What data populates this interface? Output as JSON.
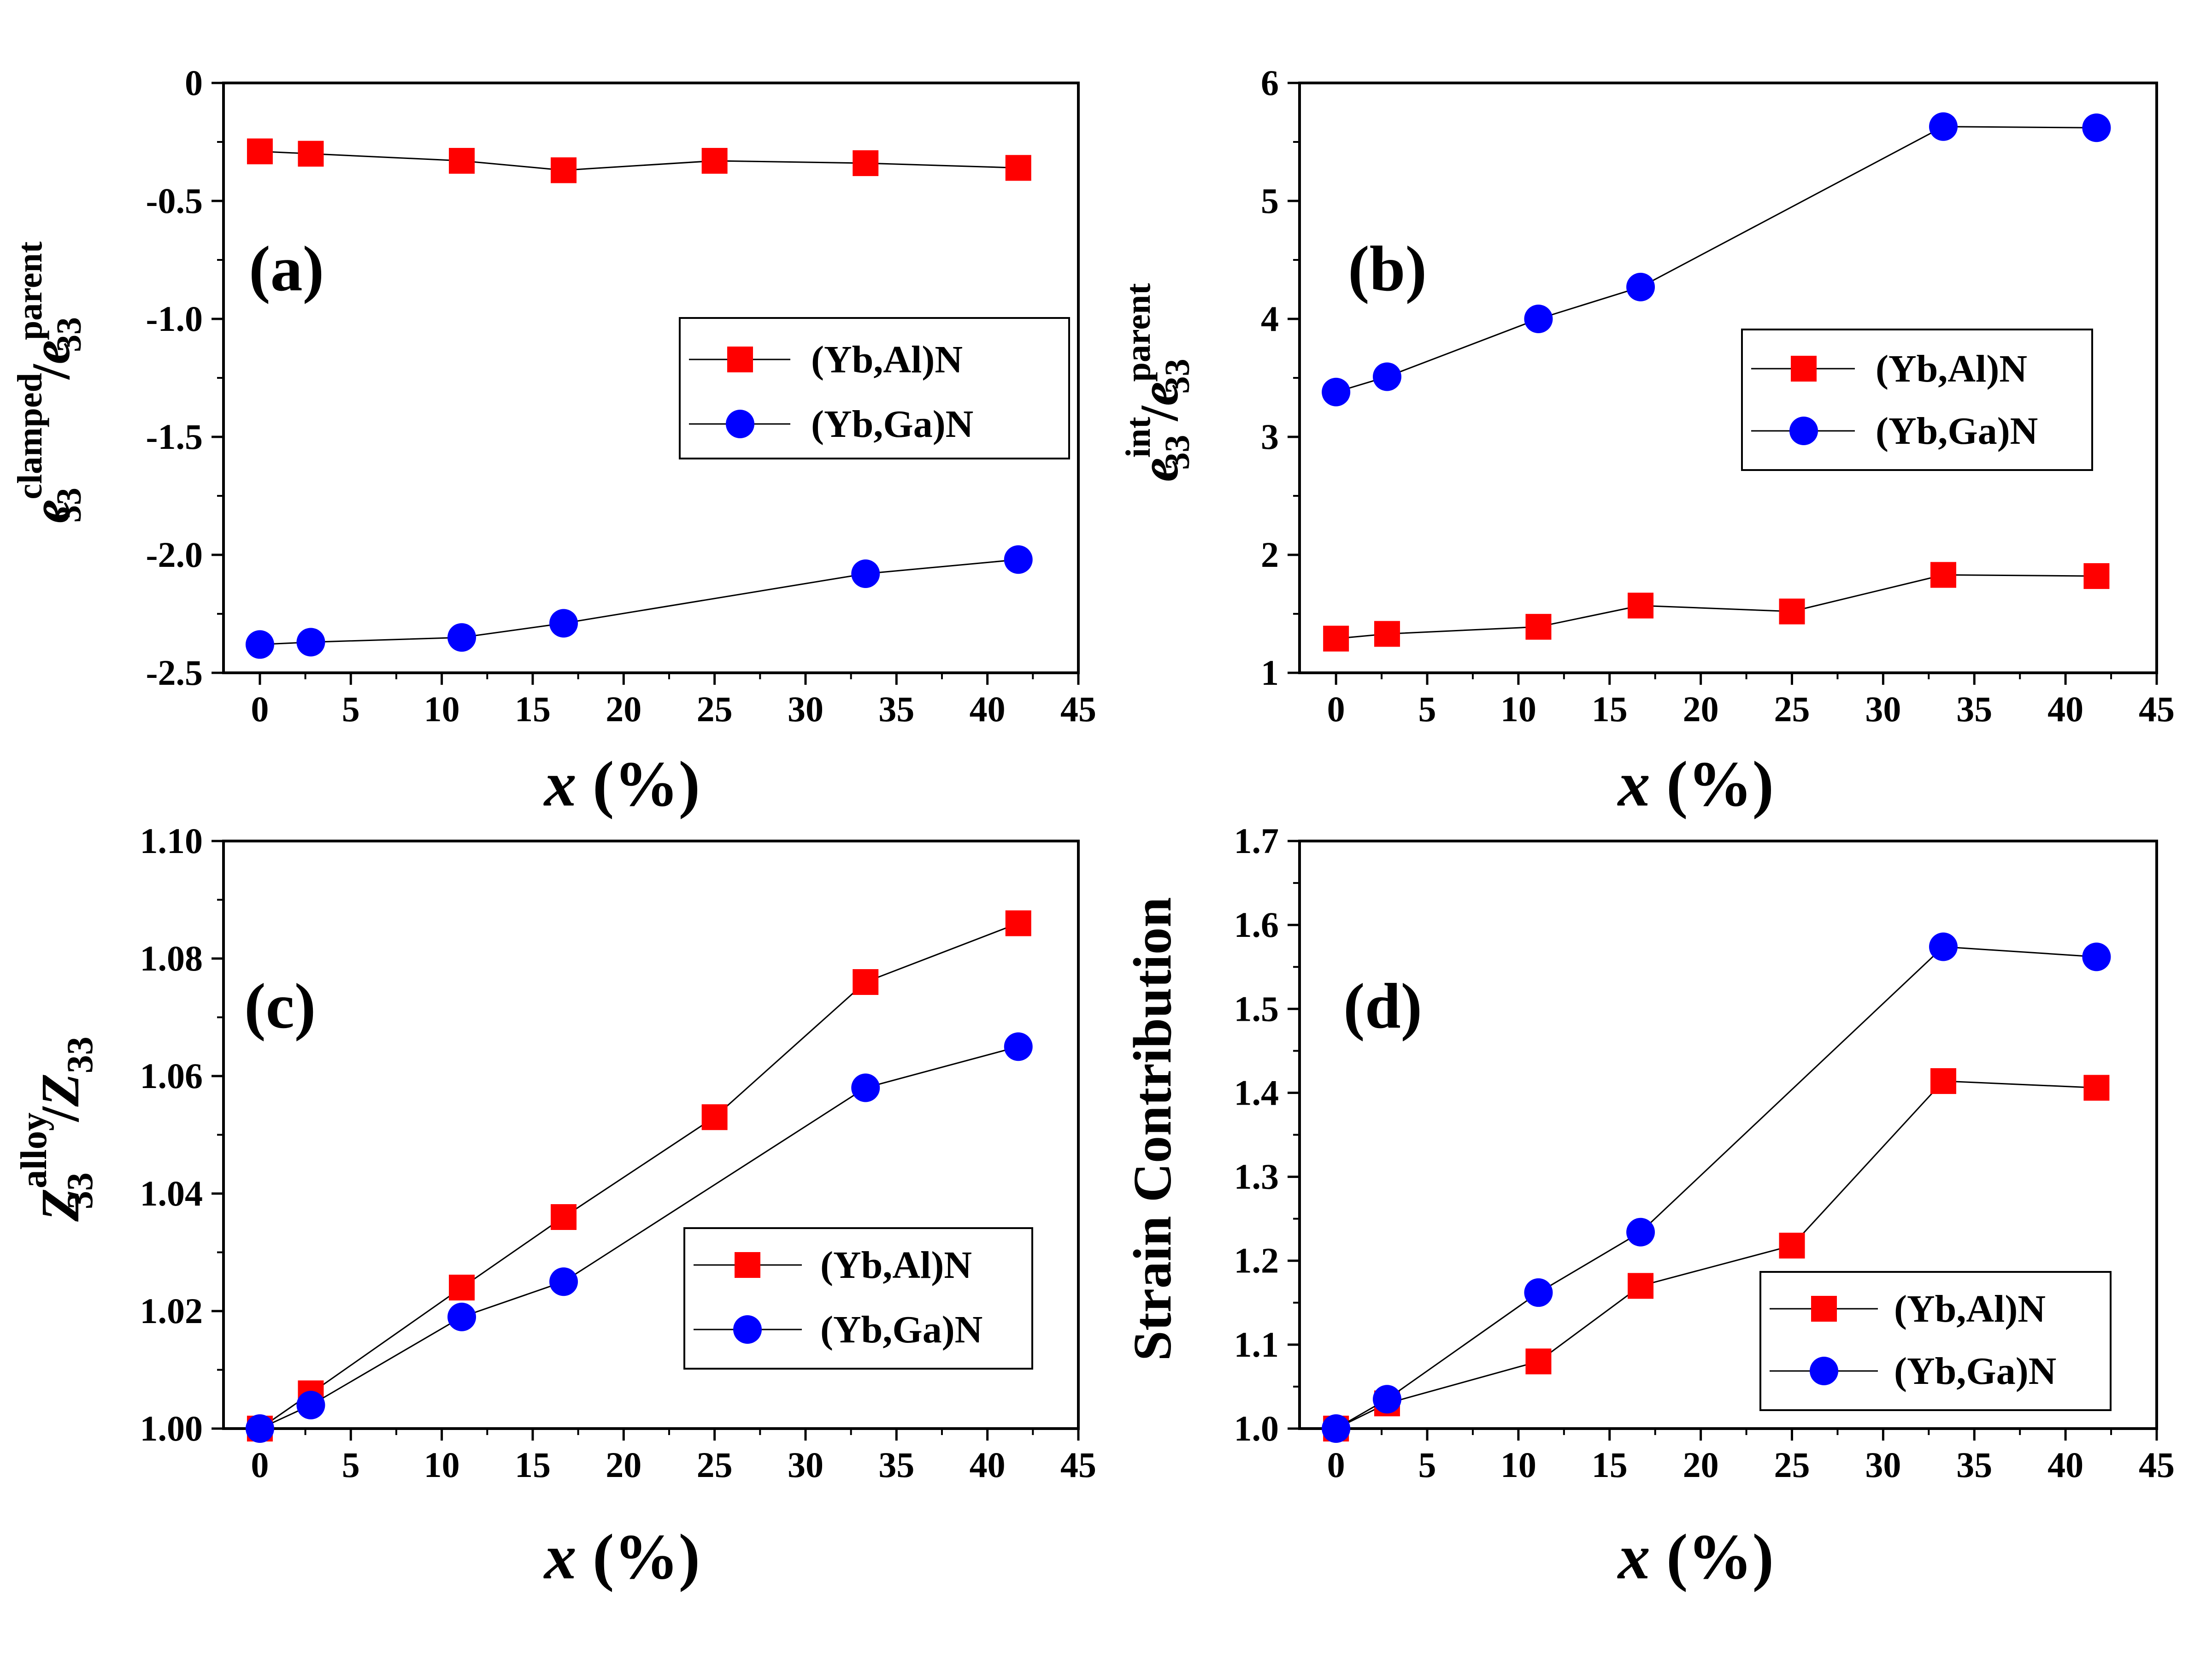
{
  "colors": {
    "al": "#ff0000",
    "ga": "#0000ff",
    "axis": "#000000"
  },
  "legend_labels": {
    "al": "(Yb,Al)N",
    "ga": "(Yb,Ga)N"
  },
  "chart_data": [
    {
      "id": "a",
      "type": "line",
      "panel_label": "(a)",
      "xlabel_var": "x",
      "xlabel_unit": " (%)",
      "ylabel": {
        "base": "e",
        "sub": "33",
        "sup": "clamped",
        "slash": "/",
        "base2": "e",
        "sub2": "33",
        "sup2": "parent"
      },
      "xlim": [
        -2,
        45
      ],
      "ylim": [
        -2.5,
        0
      ],
      "xticks": [
        0,
        5,
        10,
        15,
        20,
        25,
        30,
        35,
        40,
        45
      ],
      "yticks": [
        0,
        -0.5,
        -1.0,
        -1.5,
        -2.0,
        -2.5
      ],
      "ytick_labels": [
        "0",
        "-0.5",
        "-1.0",
        "-1.5",
        "-2.0",
        "-2.5"
      ],
      "legend_position": "upper-right",
      "x": [
        0,
        2.8,
        11.1,
        16.7,
        25,
        33.3,
        41.7
      ],
      "series": [
        {
          "name": "(Yb,Al)N",
          "marker": "square",
          "color": "#ff0000",
          "values": [
            -0.29,
            -0.3,
            -0.33,
            -0.37,
            -0.33,
            -0.34,
            -0.36
          ]
        },
        {
          "name": "(Yb,Ga)N",
          "marker": "circle",
          "color": "#0000ff",
          "values": [
            -2.38,
            -2.37,
            -2.35,
            -2.29,
            null,
            -2.08,
            -2.02
          ]
        }
      ]
    },
    {
      "id": "b",
      "type": "line",
      "panel_label": "(b)",
      "xlabel_var": "x",
      "xlabel_unit": " (%)",
      "ylabel": {
        "base": "e",
        "sub": "33",
        "sup": "int",
        "slash": "/",
        "base2": "e",
        "sub2": "33",
        "sup2": "parent"
      },
      "xlim": [
        -2,
        45
      ],
      "ylim": [
        1,
        6
      ],
      "xticks": [
        0,
        5,
        10,
        15,
        20,
        25,
        30,
        35,
        40,
        45
      ],
      "yticks": [
        1,
        2,
        3,
        4,
        5,
        6
      ],
      "ytick_labels": [
        "1",
        "2",
        "3",
        "4",
        "5",
        "6"
      ],
      "legend_position": "middle-right",
      "x": [
        0,
        2.8,
        11.1,
        16.7,
        25,
        33.3,
        41.7
      ],
      "series": [
        {
          "name": "(Yb,Al)N",
          "marker": "square",
          "color": "#ff0000",
          "values": [
            1.29,
            1.33,
            1.39,
            1.57,
            1.52,
            1.83,
            1.82
          ]
        },
        {
          "name": "(Yb,Ga)N",
          "marker": "circle",
          "color": "#0000ff",
          "values": [
            3.38,
            3.51,
            4.0,
            4.27,
            null,
            5.63,
            5.62
          ]
        }
      ]
    },
    {
      "id": "c",
      "type": "line",
      "panel_label": "(c)",
      "xlabel_var": "x",
      "xlabel_unit": " (%)",
      "ylabel": {
        "base": "Z",
        "sub": "33",
        "sup": "alloy",
        "slash": "/",
        "base2": "Z",
        "sub2": "33",
        "sup2": ""
      },
      "xlim": [
        -2,
        45
      ],
      "ylim": [
        1.0,
        1.1
      ],
      "xticks": [
        0,
        5,
        10,
        15,
        20,
        25,
        30,
        35,
        40,
        45
      ],
      "yticks": [
        1.0,
        1.02,
        1.04,
        1.06,
        1.08,
        1.1
      ],
      "ytick_labels": [
        "1.00",
        "1.02",
        "1.04",
        "1.06",
        "1.08",
        "1.10"
      ],
      "legend_position": "lower-right",
      "x": [
        0,
        2.8,
        11.1,
        16.7,
        25,
        33.3,
        41.7
      ],
      "series": [
        {
          "name": "(Yb,Al)N",
          "marker": "square",
          "color": "#ff0000",
          "values": [
            1.0,
            1.006,
            1.024,
            1.036,
            1.053,
            1.076,
            1.086
          ]
        },
        {
          "name": "(Yb,Ga)N",
          "marker": "circle",
          "color": "#0000ff",
          "values": [
            1.0,
            1.004,
            1.019,
            1.025,
            null,
            1.058,
            1.065
          ]
        }
      ]
    },
    {
      "id": "d",
      "type": "line",
      "panel_label": "(d)",
      "xlabel_var": "x",
      "xlabel_unit": " (%)",
      "ylabel_text": "Strain Contribution",
      "xlim": [
        -2,
        45
      ],
      "ylim": [
        1.0,
        1.7
      ],
      "xticks": [
        0,
        5,
        10,
        15,
        20,
        25,
        30,
        35,
        40,
        45
      ],
      "yticks": [
        1.0,
        1.1,
        1.2,
        1.3,
        1.4,
        1.5,
        1.6,
        1.7
      ],
      "ytick_labels": [
        "1.0",
        "1.1",
        "1.2",
        "1.3",
        "1.4",
        "1.5",
        "1.6",
        "1.7"
      ],
      "legend_position": "lower-right",
      "x": [
        0,
        2.8,
        11.1,
        16.7,
        25,
        33.3,
        41.7
      ],
      "series": [
        {
          "name": "(Yb,Al)N",
          "marker": "square",
          "color": "#ff0000",
          "values": [
            1.0,
            1.03,
            1.08,
            1.17,
            1.218,
            1.414,
            1.406
          ]
        },
        {
          "name": "(Yb,Ga)N",
          "marker": "circle",
          "color": "#0000ff",
          "values": [
            1.0,
            1.035,
            1.162,
            1.234,
            null,
            1.574,
            1.562
          ]
        }
      ]
    }
  ]
}
